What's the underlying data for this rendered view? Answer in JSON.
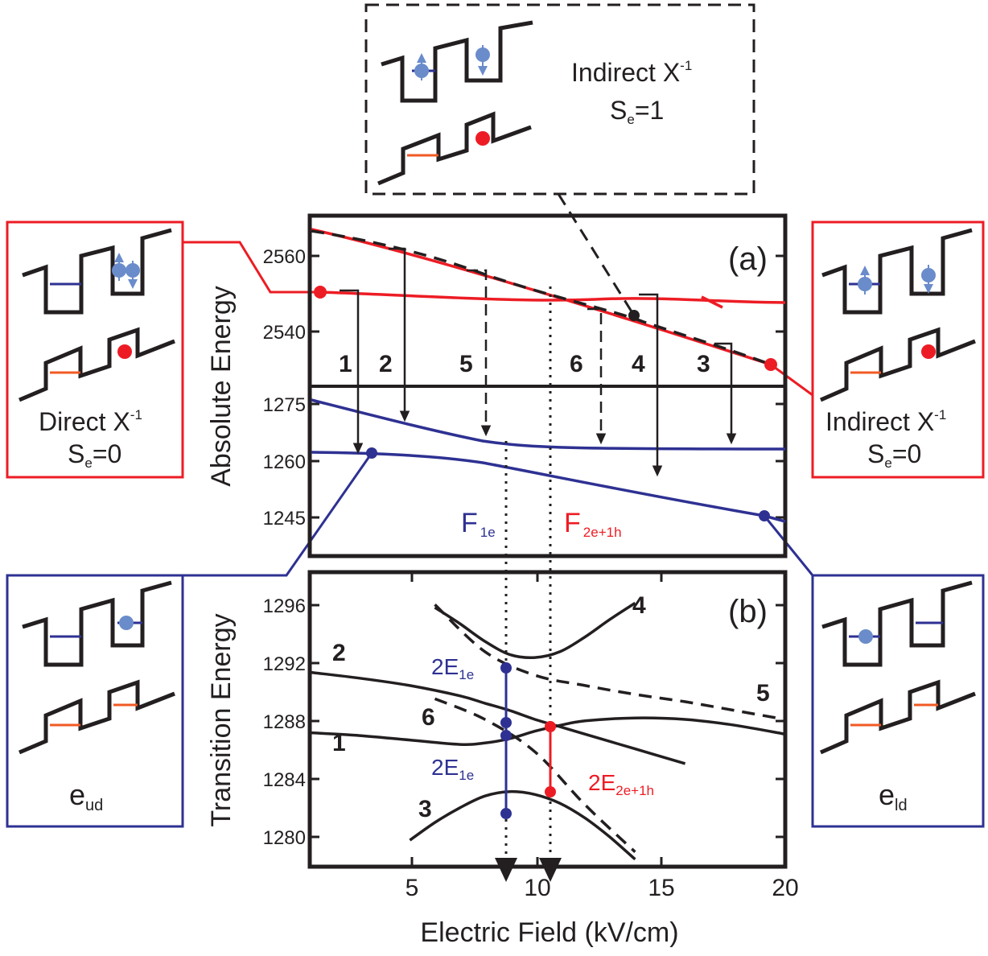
{
  "colors": {
    "red": "#ed1c24",
    "blue": "#2e3192",
    "lightblue": "#6a8ccb",
    "orange": "#f15a24",
    "black": "#231f20"
  },
  "chart_data": [
    {
      "type": "line",
      "panel": "(a)",
      "ylabel": "Absolute Energy",
      "ytick_labels": [
        "2560",
        "2540",
        "1275",
        "1260",
        "1245"
      ],
      "xlim": [
        1,
        20
      ],
      "upper_series": [
        {
          "color": "red",
          "x": [
            1,
            3,
            5,
            7,
            9,
            11,
            13,
            15,
            17,
            20
          ],
          "y": [
            2569.5,
            2566.5,
            2563,
            2559.5,
            2556,
            2552.5,
            2549,
            2545.5,
            2541,
            2534
          ]
        },
        {
          "color": "red",
          "x": [
            1,
            4,
            7,
            10,
            13,
            15,
            17,
            20
          ],
          "y": [
            2550,
            2549,
            2548,
            2546.5,
            2545.5,
            2545,
            2544.5,
            2543.5
          ]
        },
        {
          "color": "black",
          "style": "dashed",
          "x": [
            1,
            4,
            7,
            10,
            13,
            16,
            19
          ],
          "y": [
            2569,
            2566,
            2558,
            2551,
            2545,
            2539,
            2535
          ]
        }
      ],
      "lower_series": [
        {
          "color": "blue",
          "x": [
            1,
            4,
            7,
            10,
            13,
            16,
            20
          ],
          "y": [
            1277,
            1271,
            1266,
            1263.5,
            1263,
            1263,
            1263
          ]
        },
        {
          "color": "blue",
          "x": [
            1,
            4,
            7,
            10,
            13,
            16,
            20
          ],
          "y": [
            1262,
            1261.5,
            1261,
            1259,
            1255,
            1250.5,
            1244
          ]
        }
      ],
      "markers": [
        "1",
        "2",
        "5",
        "6",
        "4",
        "3"
      ],
      "annotations": [
        "F",
        "1e",
        "F",
        "2e+1h"
      ]
    },
    {
      "type": "line",
      "panel": "(b)",
      "ylabel": "Transition Energy",
      "xlabel": "Electric Field (kV/cm)",
      "xtick_labels": [
        "5",
        "10",
        "15",
        "20"
      ],
      "ytick_labels": [
        "1296",
        "1292",
        "1288",
        "1284",
        "1280"
      ],
      "xlim": [
        1,
        20
      ],
      "ylim": [
        1278,
        1298
      ],
      "series": [
        {
          "name": "1",
          "x": [
            1,
            3,
            5,
            7,
            8,
            9,
            10,
            11,
            12,
            14,
            16,
            18,
            20
          ],
          "y": [
            1287.1,
            1286.9,
            1286.6,
            1286.3,
            1286.4,
            1286.7,
            1287.2,
            1287.6,
            1287.9,
            1288.1,
            1288.0,
            1287.6,
            1287.0
          ]
        },
        {
          "name": "2",
          "x": [
            1,
            3,
            5,
            7,
            8,
            9,
            10,
            11,
            12,
            14,
            16
          ],
          "y": [
            1291.2,
            1290.8,
            1290.3,
            1289.6,
            1289.1,
            1288.6,
            1288.0,
            1287.5,
            1287.0,
            1286.0,
            1285.0
          ]
        },
        {
          "name": "3",
          "x": [
            5,
            6,
            7,
            8,
            9,
            10,
            11,
            12,
            13,
            14
          ],
          "y": [
            1279.8,
            1281.0,
            1282.0,
            1282.8,
            1283.1,
            1282.9,
            1282.3,
            1281.3,
            1280.0,
            1278.5
          ]
        },
        {
          "name": "4",
          "x": [
            6,
            7,
            8,
            9,
            10,
            11,
            12,
            13,
            14
          ],
          "y": [
            1295.6,
            1294.5,
            1293.3,
            1292.4,
            1292.2,
            1292.6,
            1293.6,
            1294.8,
            1295.9
          ]
        },
        {
          "name": "5",
          "style": "dashed",
          "x": [
            6,
            8,
            10,
            12,
            14,
            16,
            18,
            20
          ],
          "y": [
            1295.8,
            1292.6,
            1291.0,
            1290.3,
            1289.7,
            1289.2,
            1288.6,
            1288.0
          ]
        },
        {
          "name": "6",
          "style": "dashed",
          "x": [
            6,
            8,
            10,
            12,
            14
          ],
          "y": [
            1289.4,
            1288.0,
            1285.8,
            1282.2,
            1279.0
          ]
        }
      ],
      "annotations": [
        "2E",
        "1e",
        "2E",
        "1e",
        "2E",
        "2e+1h"
      ]
    }
  ],
  "boxes": {
    "top": {
      "title": "Indirect X",
      "sup": "-1",
      "spin": "S",
      "spin_sub": "e",
      "spin_val": "=1"
    },
    "left_red": {
      "title": "Direct X",
      "sup": "-1",
      "spin": "S",
      "spin_sub": "e",
      "spin_val": "=0"
    },
    "right_red": {
      "title": "Indirect X",
      "sup": "-1",
      "spin": "S",
      "spin_sub": "e",
      "spin_val": "=0"
    },
    "left_blue": {
      "label": "e",
      "sub": "ud"
    },
    "right_blue": {
      "label": "e",
      "sub": "ld"
    }
  }
}
